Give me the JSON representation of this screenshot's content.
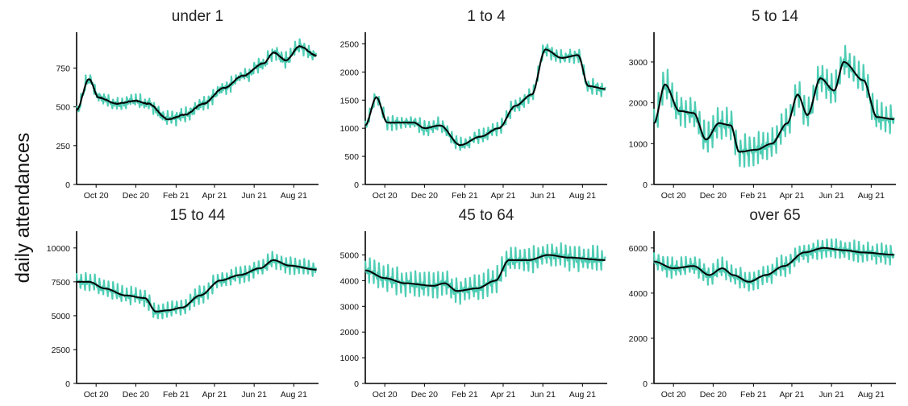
{
  "ylabel": "daily attendances",
  "x_tick_labels": [
    "Oct 20",
    "Dec 20",
    "Feb 21",
    "Apr 21",
    "Jun 21",
    "Aug 21"
  ],
  "colors": {
    "daily": "#4ecdb4",
    "smoothed": "#000000"
  },
  "chart_data": [
    {
      "type": "line",
      "title": "under 1",
      "ylim": [
        0,
        960
      ],
      "y_ticks": [
        0,
        250,
        500,
        750
      ],
      "x_ticks": [
        "2020-10-01",
        "2020-12-01",
        "2021-02-01",
        "2021-04-01",
        "2021-06-01",
        "2021-08-01"
      ],
      "xlim": [
        "2020-09-01",
        "2021-09-08"
      ],
      "series": [
        {
          "role": "daily",
          "weekly_amplitude": 40,
          "noise": 18,
          "points": [
            [
              "2020-09-01",
              480
            ],
            [
              "2020-09-20",
              680
            ],
            [
              "2020-10-05",
              560
            ],
            [
              "2020-11-01",
              520
            ],
            [
              "2020-12-01",
              540
            ],
            [
              "2020-12-20",
              520
            ],
            [
              "2021-01-20",
              420
            ],
            [
              "2021-02-15",
              450
            ],
            [
              "2021-03-15",
              520
            ],
            [
              "2021-04-15",
              620
            ],
            [
              "2021-05-15",
              700
            ],
            [
              "2021-06-15",
              780
            ],
            [
              "2021-07-01",
              850
            ],
            [
              "2021-07-20",
              800
            ],
            [
              "2021-08-10",
              890
            ],
            [
              "2021-09-05",
              830
            ]
          ]
        },
        {
          "role": "smoothed",
          "points": [
            [
              "2020-09-01",
              480
            ],
            [
              "2020-09-20",
              680
            ],
            [
              "2020-10-05",
              560
            ],
            [
              "2020-11-01",
              520
            ],
            [
              "2020-12-01",
              540
            ],
            [
              "2020-12-20",
              520
            ],
            [
              "2021-01-20",
              420
            ],
            [
              "2021-02-15",
              450
            ],
            [
              "2021-03-15",
              520
            ],
            [
              "2021-04-15",
              620
            ],
            [
              "2021-05-15",
              700
            ],
            [
              "2021-06-15",
              780
            ],
            [
              "2021-07-01",
              850
            ],
            [
              "2021-07-20",
              800
            ],
            [
              "2021-08-10",
              890
            ],
            [
              "2021-09-05",
              830
            ]
          ]
        }
      ]
    },
    {
      "type": "line",
      "title": "1 to 4",
      "ylim": [
        0,
        2650
      ],
      "y_ticks": [
        0,
        500,
        1000,
        1500,
        2000,
        2500
      ],
      "x_ticks": [
        "2020-10-01",
        "2020-12-01",
        "2021-02-01",
        "2021-04-01",
        "2021-06-01",
        "2021-08-01"
      ],
      "xlim": [
        "2020-09-01",
        "2021-09-08"
      ],
      "series": [
        {
          "role": "daily",
          "weekly_amplitude": 110,
          "noise": 40,
          "points": [
            [
              "2020-09-01",
              1050
            ],
            [
              "2020-09-18",
              1550
            ],
            [
              "2020-10-05",
              1100
            ],
            [
              "2020-11-15",
              1100
            ],
            [
              "2020-12-01",
              1000
            ],
            [
              "2020-12-25",
              1050
            ],
            [
              "2021-01-25",
              700
            ],
            [
              "2021-02-25",
              850
            ],
            [
              "2021-03-25",
              1000
            ],
            [
              "2021-04-20",
              1400
            ],
            [
              "2021-05-15",
              1600
            ],
            [
              "2021-06-05",
              2400
            ],
            [
              "2021-06-30",
              2250
            ],
            [
              "2021-07-25",
              2300
            ],
            [
              "2021-08-10",
              1750
            ],
            [
              "2021-09-05",
              1700
            ]
          ]
        },
        {
          "role": "smoothed",
          "points": [
            [
              "2020-09-01",
              1050
            ],
            [
              "2020-09-18",
              1550
            ],
            [
              "2020-10-05",
              1100
            ],
            [
              "2020-11-15",
              1100
            ],
            [
              "2020-12-01",
              1000
            ],
            [
              "2020-12-25",
              1050
            ],
            [
              "2021-01-25",
              700
            ],
            [
              "2021-02-25",
              850
            ],
            [
              "2021-03-25",
              1000
            ],
            [
              "2021-04-20",
              1400
            ],
            [
              "2021-05-15",
              1600
            ],
            [
              "2021-06-05",
              2400
            ],
            [
              "2021-06-30",
              2250
            ],
            [
              "2021-07-25",
              2300
            ],
            [
              "2021-08-10",
              1750
            ],
            [
              "2021-09-05",
              1700
            ]
          ]
        }
      ]
    },
    {
      "type": "line",
      "title": "5 to 14",
      "ylim": [
        0,
        3650
      ],
      "y_ticks": [
        0,
        1000,
        2000,
        3000
      ],
      "x_ticks": [
        "2020-10-01",
        "2020-12-01",
        "2021-02-01",
        "2021-04-01",
        "2021-06-01",
        "2021-08-01"
      ],
      "xlim": [
        "2020-09-01",
        "2021-09-08"
      ],
      "series": [
        {
          "role": "daily",
          "weekly_amplitude": 350,
          "noise": 80,
          "points": [
            [
              "2020-09-01",
              1500
            ],
            [
              "2020-09-18",
              2450
            ],
            [
              "2020-10-10",
              1800
            ],
            [
              "2020-11-01",
              1750
            ],
            [
              "2020-11-20",
              1100
            ],
            [
              "2020-12-10",
              1500
            ],
            [
              "2020-12-28",
              1450
            ],
            [
              "2021-01-10",
              800
            ],
            [
              "2021-02-05",
              850
            ],
            [
              "2021-03-01",
              1000
            ],
            [
              "2021-03-25",
              1500
            ],
            [
              "2021-04-10",
              2200
            ],
            [
              "2021-04-25",
              1700
            ],
            [
              "2021-05-15",
              2600
            ],
            [
              "2021-06-05",
              2300
            ],
            [
              "2021-06-20",
              3000
            ],
            [
              "2021-07-20",
              2550
            ],
            [
              "2021-08-10",
              1650
            ],
            [
              "2021-09-05",
              1600
            ]
          ]
        },
        {
          "role": "smoothed",
          "points": [
            [
              "2020-09-01",
              1500
            ],
            [
              "2020-09-18",
              2450
            ],
            [
              "2020-10-10",
              1800
            ],
            [
              "2020-11-01",
              1750
            ],
            [
              "2020-11-20",
              1100
            ],
            [
              "2020-12-10",
              1500
            ],
            [
              "2020-12-28",
              1450
            ],
            [
              "2021-01-10",
              800
            ],
            [
              "2021-02-05",
              850
            ],
            [
              "2021-03-01",
              1000
            ],
            [
              "2021-03-25",
              1500
            ],
            [
              "2021-04-10",
              2200
            ],
            [
              "2021-04-25",
              1700
            ],
            [
              "2021-05-15",
              2600
            ],
            [
              "2021-06-05",
              2300
            ],
            [
              "2021-06-20",
              3000
            ],
            [
              "2021-07-20",
              2550
            ],
            [
              "2021-08-10",
              1650
            ],
            [
              "2021-09-05",
              1600
            ]
          ]
        }
      ]
    },
    {
      "type": "line",
      "title": "15 to 44",
      "ylim": [
        0,
        11000
      ],
      "y_ticks": [
        0,
        2500,
        5000,
        7500,
        10000
      ],
      "x_ticks": [
        "2020-10-01",
        "2020-12-01",
        "2021-02-01",
        "2021-04-01",
        "2021-06-01",
        "2021-08-01"
      ],
      "xlim": [
        "2020-09-01",
        "2021-09-08"
      ],
      "series": [
        {
          "role": "daily",
          "weekly_amplitude": 550,
          "noise": 150,
          "points": [
            [
              "2020-09-01",
              7500
            ],
            [
              "2020-09-20",
              7500
            ],
            [
              "2020-10-15",
              7000
            ],
            [
              "2020-11-15",
              6500
            ],
            [
              "2020-12-15",
              6300
            ],
            [
              "2021-01-01",
              5300
            ],
            [
              "2021-01-20",
              5400
            ],
            [
              "2021-02-10",
              5600
            ],
            [
              "2021-03-10",
              6500
            ],
            [
              "2021-04-10",
              7600
            ],
            [
              "2021-05-10",
              8000
            ],
            [
              "2021-06-10",
              8500
            ],
            [
              "2021-07-01",
              9100
            ],
            [
              "2021-07-25",
              8700
            ],
            [
              "2021-09-05",
              8400
            ]
          ]
        },
        {
          "role": "smoothed",
          "points": [
            [
              "2020-09-01",
              7500
            ],
            [
              "2020-09-20",
              7500
            ],
            [
              "2020-10-15",
              7000
            ],
            [
              "2020-11-15",
              6500
            ],
            [
              "2020-12-15",
              6300
            ],
            [
              "2021-01-01",
              5300
            ],
            [
              "2021-01-20",
              5400
            ],
            [
              "2021-02-10",
              5600
            ],
            [
              "2021-03-10",
              6500
            ],
            [
              "2021-04-10",
              7600
            ],
            [
              "2021-05-10",
              8000
            ],
            [
              "2021-06-10",
              8500
            ],
            [
              "2021-07-01",
              9100
            ],
            [
              "2021-07-25",
              8700
            ],
            [
              "2021-09-05",
              8400
            ]
          ]
        }
      ]
    },
    {
      "type": "line",
      "title": "45 to 64",
      "ylim": [
        0,
        5800
      ],
      "y_ticks": [
        0,
        1000,
        2000,
        3000,
        4000,
        5000
      ],
      "x_ticks": [
        "2020-10-01",
        "2020-12-01",
        "2021-02-01",
        "2021-04-01",
        "2021-06-01",
        "2021-08-01"
      ],
      "xlim": [
        "2020-09-01",
        "2021-09-08"
      ],
      "series": [
        {
          "role": "daily",
          "weekly_amplitude": 450,
          "noise": 120,
          "points": [
            [
              "2020-09-01",
              4400
            ],
            [
              "2020-10-01",
              4100
            ],
            [
              "2020-11-01",
              3900
            ],
            [
              "2020-12-15",
              3800
            ],
            [
              "2021-01-01",
              3900
            ],
            [
              "2021-01-20",
              3600
            ],
            [
              "2021-02-20",
              3700
            ],
            [
              "2021-03-20",
              4000
            ],
            [
              "2021-04-10",
              4800
            ],
            [
              "2021-05-10",
              4800
            ],
            [
              "2021-06-10",
              5000
            ],
            [
              "2021-07-10",
              4900
            ],
            [
              "2021-09-05",
              4800
            ]
          ]
        },
        {
          "role": "smoothed",
          "points": [
            [
              "2020-09-01",
              4400
            ],
            [
              "2020-10-01",
              4100
            ],
            [
              "2020-11-01",
              3900
            ],
            [
              "2020-12-15",
              3800
            ],
            [
              "2021-01-01",
              3900
            ],
            [
              "2021-01-20",
              3600
            ],
            [
              "2021-02-20",
              3700
            ],
            [
              "2021-03-20",
              4000
            ],
            [
              "2021-04-10",
              4800
            ],
            [
              "2021-05-10",
              4800
            ],
            [
              "2021-06-10",
              5000
            ],
            [
              "2021-07-10",
              4900
            ],
            [
              "2021-09-05",
              4800
            ]
          ]
        }
      ]
    },
    {
      "type": "line",
      "title": "over 65",
      "ylim": [
        0,
        6600
      ],
      "y_ticks": [
        0,
        2000,
        4000,
        6000
      ],
      "x_ticks": [
        "2020-10-01",
        "2020-12-01",
        "2021-02-01",
        "2021-04-01",
        "2021-06-01",
        "2021-08-01"
      ],
      "xlim": [
        "2020-09-01",
        "2021-09-08"
      ],
      "series": [
        {
          "role": "daily",
          "weekly_amplitude": 400,
          "noise": 110,
          "points": [
            [
              "2020-09-01",
              5400
            ],
            [
              "2020-10-01",
              5100
            ],
            [
              "2020-11-01",
              5200
            ],
            [
              "2020-11-25",
              4800
            ],
            [
              "2020-12-15",
              5100
            ],
            [
              "2021-01-01",
              4800
            ],
            [
              "2021-01-25",
              4500
            ],
            [
              "2021-02-20",
              4800
            ],
            [
              "2021-03-20",
              5200
            ],
            [
              "2021-04-20",
              5800
            ],
            [
              "2021-05-20",
              6000
            ],
            [
              "2021-06-20",
              5900
            ],
            [
              "2021-07-20",
              5800
            ],
            [
              "2021-09-05",
              5700
            ]
          ]
        },
        {
          "role": "smoothed",
          "points": [
            [
              "2020-09-01",
              5400
            ],
            [
              "2020-10-01",
              5100
            ],
            [
              "2020-11-01",
              5200
            ],
            [
              "2020-11-25",
              4800
            ],
            [
              "2020-12-15",
              5100
            ],
            [
              "2021-01-01",
              4800
            ],
            [
              "2021-01-25",
              4500
            ],
            [
              "2021-02-20",
              4800
            ],
            [
              "2021-03-20",
              5200
            ],
            [
              "2021-04-20",
              5800
            ],
            [
              "2021-05-20",
              6000
            ],
            [
              "2021-06-20",
              5900
            ],
            [
              "2021-07-20",
              5800
            ],
            [
              "2021-09-05",
              5700
            ]
          ]
        }
      ]
    }
  ]
}
